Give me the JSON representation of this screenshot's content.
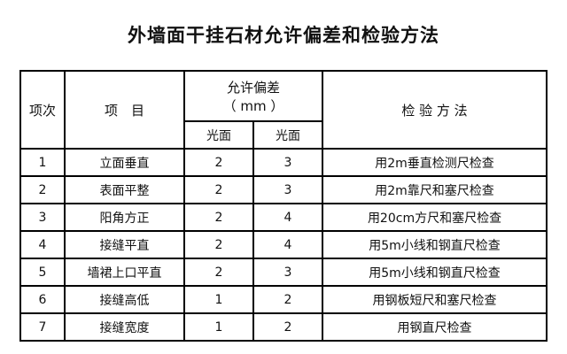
{
  "title": "外墙面干挂石材允许偏差和检验方法",
  "header": {
    "col_index": "项次",
    "col_item": "项　目",
    "col_tolerance": "允许偏差",
    "col_tolerance_unit": "（ mm ）",
    "col_method": "检 验 方 法",
    "sub_a": "光面",
    "sub_b": "光面"
  },
  "rows": [
    {
      "no": "1",
      "item": "立面垂直",
      "a": "2",
      "b": "3",
      "method": "用2m垂直检测尺检查"
    },
    {
      "no": "2",
      "item": "表面平整",
      "a": "2",
      "b": "3",
      "method": "用2m靠尺和塞尺检查"
    },
    {
      "no": "3",
      "item": "阳角方正",
      "a": "2",
      "b": "4",
      "method": "用20cm方尺和塞尺检查"
    },
    {
      "no": "4",
      "item": "接缝平直",
      "a": "2",
      "b": "4",
      "method": "用5m小线和钢直尺检查"
    },
    {
      "no": "5",
      "item": "墙裙上口平直",
      "a": "2",
      "b": "3",
      "method": "用5m小线和钢直尺检查"
    },
    {
      "no": "6",
      "item": "接缝高低",
      "a": "1",
      "b": "2",
      "method": "用钢板短尺和塞尺检查"
    },
    {
      "no": "7",
      "item": "接缝宽度",
      "a": "1",
      "b": "2",
      "method": "用钢直尺检查"
    }
  ]
}
